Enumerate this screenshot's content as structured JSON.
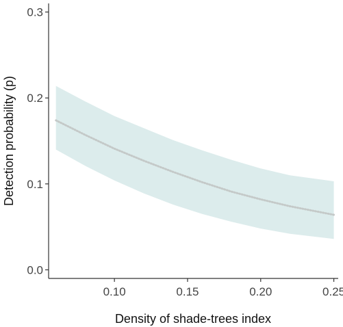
{
  "chart_data": {
    "type": "line",
    "title": "",
    "xlabel": "Density of shade-trees index",
    "ylabel": "Detection probability (p)",
    "xlim": [
      0.055,
      0.253
    ],
    "ylim": [
      -0.01,
      0.31
    ],
    "x_ticks": [
      0.1,
      0.15,
      0.2,
      0.25
    ],
    "x_tick_labels": [
      "0.10",
      "0.15",
      "0.20",
      "0.25"
    ],
    "y_ticks": [
      0.0,
      0.1,
      0.2,
      0.3
    ],
    "y_tick_labels": [
      "0.0",
      "0.1",
      "0.2",
      "0.3"
    ],
    "grid": false,
    "legend": "none",
    "series": [
      {
        "role": "fitted-line",
        "style": "dotted",
        "color": "#c4c9c8",
        "x": [
          0.06,
          0.08,
          0.1,
          0.12,
          0.14,
          0.16,
          0.18,
          0.2,
          0.22,
          0.25
        ],
        "y": [
          0.174,
          0.157,
          0.141,
          0.127,
          0.114,
          0.102,
          0.091,
          0.082,
          0.074,
          0.064
        ]
      },
      {
        "role": "confidence-band",
        "color": "#dcecec",
        "x": [
          0.06,
          0.08,
          0.1,
          0.12,
          0.14,
          0.16,
          0.18,
          0.2,
          0.22,
          0.25
        ],
        "lower": [
          0.14,
          0.121,
          0.104,
          0.089,
          0.076,
          0.065,
          0.056,
          0.048,
          0.042,
          0.036
        ],
        "upper": [
          0.214,
          0.196,
          0.179,
          0.165,
          0.151,
          0.139,
          0.128,
          0.118,
          0.11,
          0.103
        ]
      }
    ]
  }
}
